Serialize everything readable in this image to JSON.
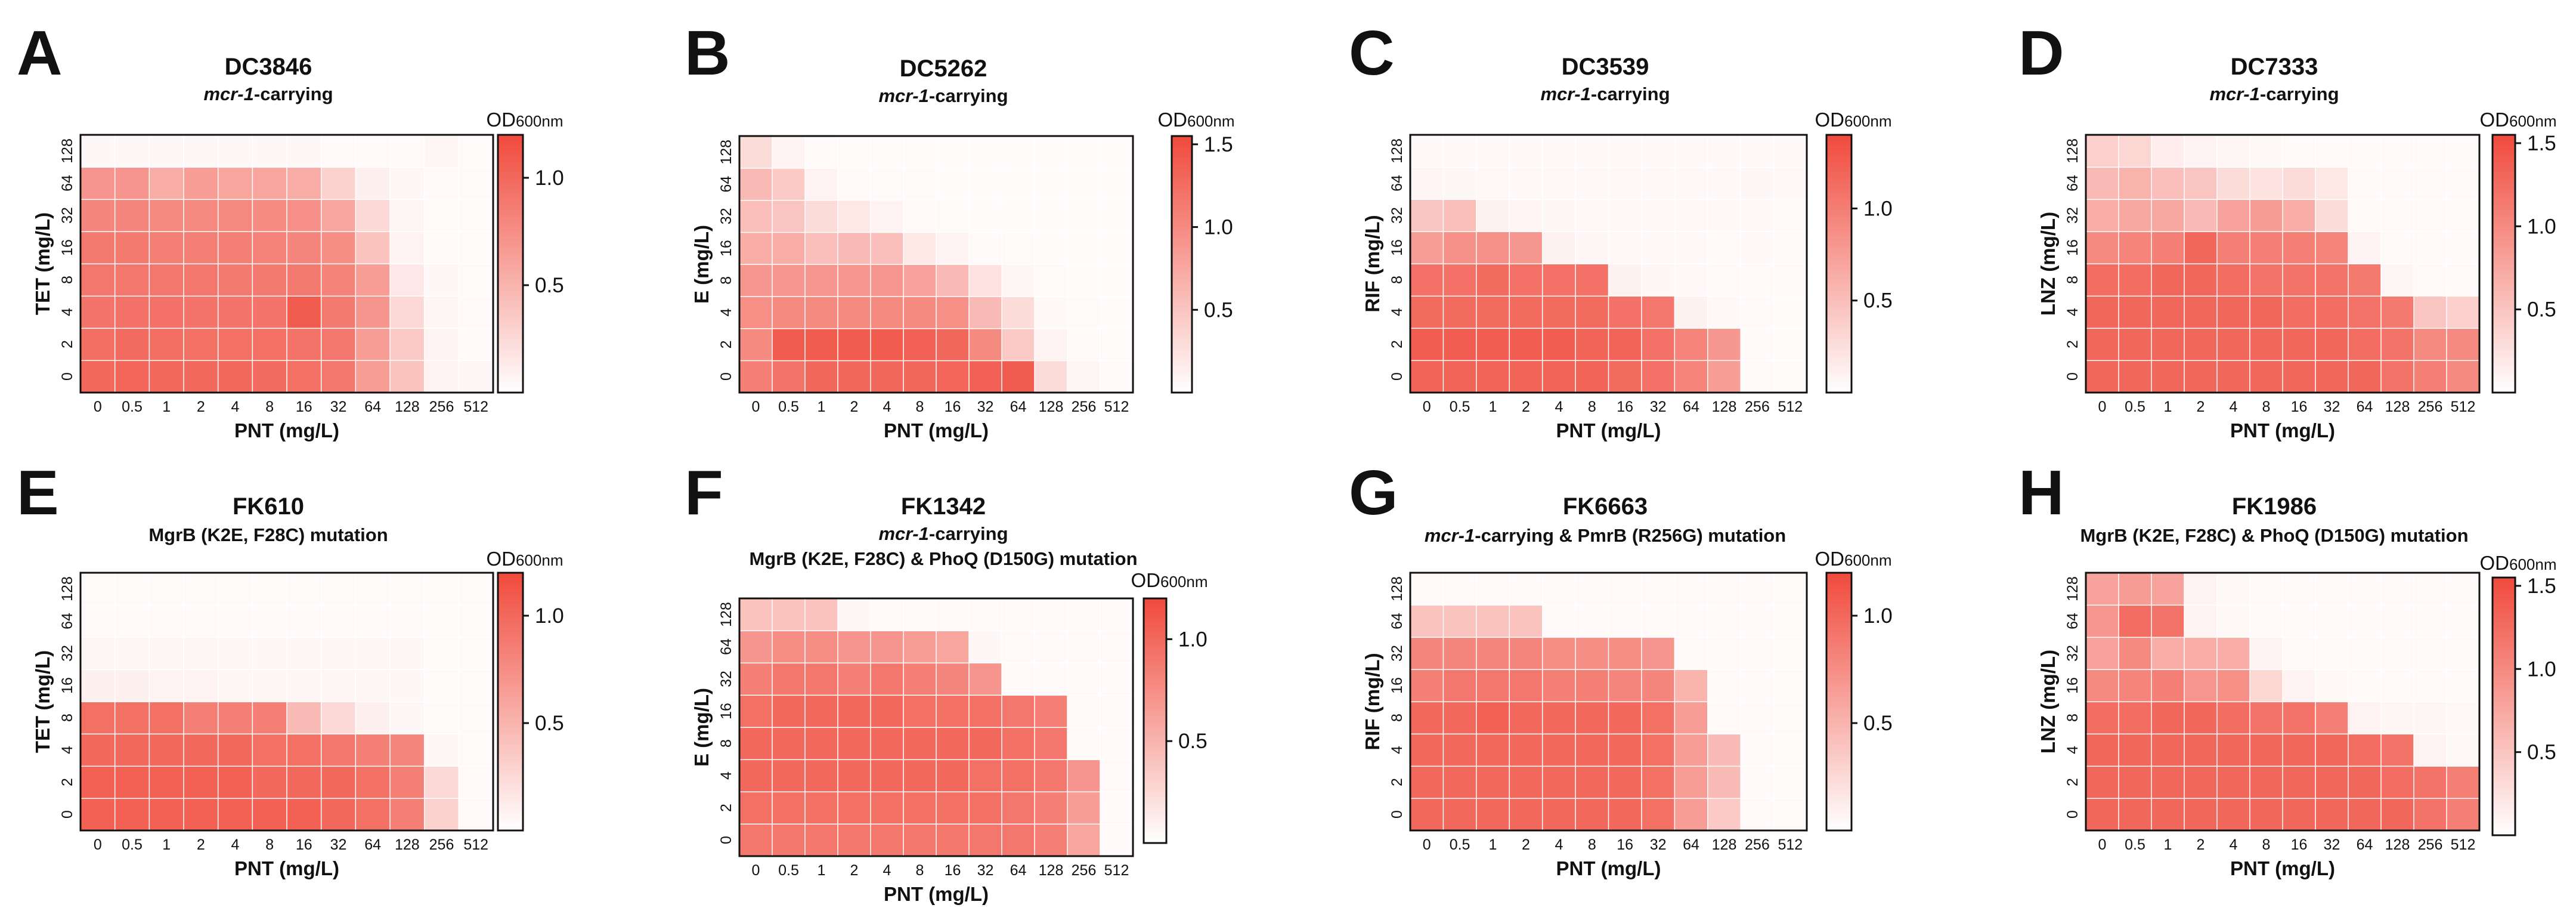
{
  "colormap": {
    "low": "#ffffff",
    "high": "#f04a3c"
  },
  "chart_data": [
    {
      "type": "heatmap",
      "letter": "A",
      "title": "DC3846",
      "subtitle_em": "mcr-1",
      "subtitle_rest": "-carrying",
      "subtitle2": "",
      "xlabel": "PNT (mg/L)",
      "ylabel": "TET (mg/L)",
      "x": [
        "0",
        "0.5",
        "1",
        "2",
        "4",
        "8",
        "16",
        "32",
        "64",
        "128",
        "256",
        "512"
      ],
      "y": [
        "0",
        "2",
        "4",
        "8",
        "16",
        "32",
        "64",
        "128"
      ],
      "colorbar_label": "OD",
      "colorbar_sub": "600nm",
      "colorbar_ticks": [
        "0.5",
        "1.0"
      ],
      "vmax": 1.2,
      "values": [
        [
          1.0,
          1.02,
          1.0,
          1.0,
          1.0,
          0.98,
          0.95,
          0.9,
          0.65,
          0.4,
          0.08,
          0.05
        ],
        [
          0.96,
          0.98,
          0.96,
          0.95,
          0.95,
          0.95,
          0.92,
          0.9,
          0.65,
          0.35,
          0.07,
          0.04
        ],
        [
          0.92,
          0.94,
          0.94,
          0.92,
          0.92,
          0.92,
          1.08,
          0.88,
          0.7,
          0.25,
          0.06,
          0.04
        ],
        [
          0.9,
          0.9,
          0.9,
          0.9,
          0.88,
          0.88,
          0.88,
          0.82,
          0.65,
          0.15,
          0.05,
          0.03
        ],
        [
          0.88,
          0.88,
          0.85,
          0.85,
          0.85,
          0.83,
          0.8,
          0.75,
          0.4,
          0.08,
          0.04,
          0.03
        ],
        [
          0.8,
          0.8,
          0.78,
          0.78,
          0.78,
          0.76,
          0.74,
          0.6,
          0.25,
          0.06,
          0.03,
          0.03
        ],
        [
          0.7,
          0.7,
          0.55,
          0.65,
          0.6,
          0.6,
          0.55,
          0.3,
          0.1,
          0.05,
          0.04,
          0.03
        ],
        [
          0.05,
          0.05,
          0.05,
          0.05,
          0.05,
          0.05,
          0.05,
          0.04,
          0.04,
          0.04,
          0.06,
          0.03
        ]
      ]
    },
    {
      "type": "heatmap",
      "letter": "B",
      "title": "DC5262",
      "subtitle_em": "mcr-1",
      "subtitle_rest": "-carrying",
      "subtitle2": "",
      "xlabel": "PNT (mg/L)",
      "ylabel": "E (mg/L)",
      "x": [
        "0",
        "0.5",
        "1",
        "2",
        "4",
        "8",
        "16",
        "32",
        "64",
        "128",
        "256",
        "512"
      ],
      "y": [
        "0",
        "2",
        "4",
        "8",
        "16",
        "32",
        "64",
        "128"
      ],
      "colorbar_label": "OD",
      "colorbar_sub": "600nm",
      "colorbar_ticks": [
        "0.5",
        "1.0",
        "1.5"
      ],
      "vmax": 1.55,
      "values": [
        [
          1.1,
          1.2,
          1.3,
          1.3,
          1.3,
          1.3,
          1.32,
          1.35,
          1.4,
          0.3,
          0.08,
          0.05
        ],
        [
          1.0,
          1.4,
          1.4,
          1.4,
          1.4,
          1.35,
          1.3,
          1.0,
          0.45,
          0.1,
          0.05,
          0.04
        ],
        [
          0.95,
          1.0,
          1.0,
          1.0,
          1.0,
          1.0,
          0.95,
          0.6,
          0.3,
          0.06,
          0.04,
          0.03
        ],
        [
          0.9,
          0.9,
          0.9,
          0.9,
          0.9,
          0.8,
          0.6,
          0.25,
          0.08,
          0.04,
          0.03,
          0.03
        ],
        [
          0.7,
          0.7,
          0.55,
          0.6,
          0.55,
          0.2,
          0.1,
          0.05,
          0.04,
          0.03,
          0.03,
          0.03
        ],
        [
          0.55,
          0.5,
          0.3,
          0.2,
          0.1,
          0.05,
          0.04,
          0.03,
          0.03,
          0.03,
          0.03,
          0.03
        ],
        [
          0.6,
          0.45,
          0.1,
          0.05,
          0.04,
          0.04,
          0.03,
          0.03,
          0.03,
          0.03,
          0.03,
          0.03
        ],
        [
          0.3,
          0.1,
          0.05,
          0.04,
          0.04,
          0.03,
          0.03,
          0.03,
          0.03,
          0.03,
          0.03,
          0.03
        ]
      ]
    },
    {
      "type": "heatmap",
      "letter": "C",
      "title": "DC3539",
      "subtitle_em": "mcr-1",
      "subtitle_rest": "-carrying",
      "subtitle2": "",
      "xlabel": "PNT (mg/L)",
      "ylabel": "RIF (mg/L)",
      "x": [
        "0",
        "0.5",
        "1",
        "2",
        "4",
        "8",
        "16",
        "32",
        "64",
        "128",
        "256",
        "512"
      ],
      "y": [
        "0",
        "2",
        "4",
        "8",
        "16",
        "32",
        "64",
        "128"
      ],
      "colorbar_label": "OD",
      "colorbar_sub": "600nm",
      "colorbar_ticks": [
        "0.5",
        "1.0"
      ],
      "vmax": 1.4,
      "values": [
        [
          1.2,
          1.2,
          1.2,
          1.2,
          1.2,
          1.2,
          1.15,
          1.1,
          0.95,
          0.75,
          0.04,
          0.03
        ],
        [
          1.25,
          1.25,
          1.25,
          1.25,
          1.25,
          1.2,
          1.2,
          1.1,
          0.95,
          0.8,
          0.04,
          0.03
        ],
        [
          1.15,
          1.15,
          1.15,
          1.15,
          1.15,
          1.15,
          1.1,
          1.05,
          0.1,
          0.05,
          0.04,
          0.03
        ],
        [
          1.1,
          1.1,
          1.15,
          1.1,
          1.1,
          1.1,
          0.1,
          0.06,
          0.05,
          0.04,
          0.04,
          0.04
        ],
        [
          0.75,
          0.85,
          0.85,
          0.8,
          0.1,
          0.06,
          0.05,
          0.05,
          0.05,
          0.04,
          0.05,
          0.04
        ],
        [
          0.45,
          0.5,
          0.1,
          0.08,
          0.06,
          0.05,
          0.05,
          0.05,
          0.05,
          0.05,
          0.05,
          0.04
        ],
        [
          0.08,
          0.06,
          0.05,
          0.05,
          0.05,
          0.05,
          0.05,
          0.05,
          0.05,
          0.05,
          0.06,
          0.05
        ],
        [
          0.05,
          0.05,
          0.05,
          0.05,
          0.05,
          0.05,
          0.05,
          0.05,
          0.05,
          0.05,
          0.05,
          0.05
        ]
      ]
    },
    {
      "type": "heatmap",
      "letter": "D",
      "title": "DC7333",
      "subtitle_em": "mcr-1",
      "subtitle_rest": "-carrying",
      "subtitle2": "",
      "xlabel": "PNT (mg/L)",
      "ylabel": "LNZ (mg/L)",
      "x": [
        "0",
        "0.5",
        "1",
        "2",
        "4",
        "8",
        "16",
        "32",
        "64",
        "128",
        "256",
        "512"
      ],
      "y": [
        "0",
        "2",
        "4",
        "8",
        "16",
        "32",
        "64",
        "128"
      ],
      "colorbar_label": "OD",
      "colorbar_sub": "600nm",
      "colorbar_ticks": [
        "0.5",
        "1.0",
        "1.5"
      ],
      "vmax": 1.55,
      "values": [
        [
          1.3,
          1.3,
          1.3,
          1.3,
          1.3,
          1.3,
          1.3,
          1.3,
          1.3,
          1.2,
          1.1,
          1.0
        ],
        [
          1.3,
          1.3,
          1.3,
          1.3,
          1.3,
          1.3,
          1.3,
          1.3,
          1.25,
          1.2,
          1.0,
          1.0
        ],
        [
          1.3,
          1.3,
          1.3,
          1.3,
          1.3,
          1.3,
          1.25,
          1.25,
          1.2,
          1.15,
          0.5,
          0.4
        ],
        [
          1.25,
          1.25,
          1.3,
          1.3,
          1.25,
          1.2,
          1.2,
          1.2,
          1.15,
          0.08,
          0.05,
          0.05
        ],
        [
          1.0,
          1.05,
          1.1,
          1.3,
          1.1,
          1.1,
          1.1,
          1.05,
          0.1,
          0.05,
          0.05,
          0.05
        ],
        [
          0.7,
          0.75,
          0.75,
          0.6,
          0.8,
          0.85,
          0.7,
          0.3,
          0.05,
          0.05,
          0.05,
          0.05
        ],
        [
          0.6,
          0.65,
          0.55,
          0.5,
          0.3,
          0.25,
          0.3,
          0.2,
          0.05,
          0.05,
          0.05,
          0.05
        ],
        [
          0.4,
          0.35,
          0.15,
          0.1,
          0.08,
          0.06,
          0.05,
          0.05,
          0.05,
          0.05,
          0.05,
          0.05
        ]
      ]
    },
    {
      "type": "heatmap",
      "letter": "E",
      "title": "FK610",
      "subtitle_em": "",
      "subtitle_rest": "",
      "subtitle2": "MgrB (K2E, F28C) mutation",
      "xlabel": "PNT (mg/L)",
      "ylabel": "TET (mg/L)",
      "x": [
        "0",
        "0.5",
        "1",
        "2",
        "4",
        "8",
        "16",
        "32",
        "64",
        "128",
        "256",
        "512"
      ],
      "y": [
        "0",
        "2",
        "4",
        "8",
        "16",
        "32",
        "64",
        "128"
      ],
      "colorbar_label": "OD",
      "colorbar_sub": "600nm",
      "colorbar_ticks": [
        "0.5",
        "1.0"
      ],
      "vmax": 1.2,
      "values": [
        [
          1.05,
          1.05,
          1.05,
          1.05,
          1.05,
          1.05,
          1.05,
          1.0,
          0.95,
          0.85,
          0.3,
          0.04
        ],
        [
          1.05,
          1.05,
          1.05,
          1.05,
          1.05,
          1.0,
          1.0,
          1.0,
          0.95,
          0.85,
          0.25,
          0.04
        ],
        [
          1.0,
          1.0,
          1.0,
          1.0,
          1.0,
          0.95,
          0.95,
          0.9,
          0.85,
          0.8,
          0.05,
          0.03
        ],
        [
          0.95,
          0.95,
          0.95,
          0.85,
          0.85,
          0.85,
          0.45,
          0.25,
          0.1,
          0.05,
          0.03,
          0.03
        ],
        [
          0.1,
          0.1,
          0.08,
          0.08,
          0.06,
          0.06,
          0.06,
          0.06,
          0.06,
          0.05,
          0.03,
          0.03
        ],
        [
          0.06,
          0.06,
          0.06,
          0.06,
          0.05,
          0.05,
          0.05,
          0.05,
          0.05,
          0.05,
          0.03,
          0.03
        ],
        [
          0.04,
          0.04,
          0.04,
          0.04,
          0.04,
          0.04,
          0.04,
          0.04,
          0.04,
          0.04,
          0.03,
          0.03
        ],
        [
          0.03,
          0.03,
          0.03,
          0.03,
          0.03,
          0.03,
          0.03,
          0.03,
          0.03,
          0.03,
          0.03,
          0.03
        ]
      ]
    },
    {
      "type": "heatmap",
      "letter": "F",
      "title": "FK1342",
      "subtitle_em": "mcr-1",
      "subtitle_rest": "-carrying",
      "subtitle2": "MgrB (K2E, F28C) & PhoQ (D150G) mutation",
      "xlabel": "PNT (mg/L)",
      "ylabel": "E (mg/L)",
      "x": [
        "0",
        "0.5",
        "1",
        "2",
        "4",
        "8",
        "16",
        "32",
        "64",
        "128",
        "256",
        "512"
      ],
      "y": [
        "0",
        "2",
        "4",
        "8",
        "16",
        "32",
        "64",
        "128"
      ],
      "colorbar_label": "OD",
      "colorbar_sub": "600nm",
      "colorbar_ticks": [
        "0.5",
        "1.0"
      ],
      "vmax": 1.2,
      "values": [
        [
          0.9,
          0.9,
          0.9,
          0.9,
          0.9,
          0.9,
          0.9,
          0.9,
          0.9,
          0.85,
          0.6,
          0.04
        ],
        [
          0.95,
          0.95,
          0.95,
          0.95,
          0.95,
          0.95,
          0.95,
          0.95,
          0.9,
          0.85,
          0.65,
          0.04
        ],
        [
          1.0,
          1.0,
          1.0,
          1.0,
          1.0,
          1.0,
          1.0,
          0.95,
          0.95,
          0.9,
          0.7,
          0.04
        ],
        [
          1.0,
          1.0,
          1.0,
          1.0,
          1.0,
          1.0,
          1.0,
          1.0,
          0.95,
          0.9,
          0.04,
          0.04
        ],
        [
          0.95,
          1.0,
          1.0,
          1.0,
          1.0,
          0.95,
          0.95,
          0.95,
          0.9,
          0.85,
          0.04,
          0.04
        ],
        [
          0.85,
          0.9,
          0.9,
          0.85,
          0.9,
          0.85,
          0.8,
          0.7,
          0.04,
          0.04,
          0.04,
          0.04
        ],
        [
          0.7,
          0.75,
          0.75,
          0.7,
          0.7,
          0.65,
          0.6,
          0.05,
          0.04,
          0.04,
          0.04,
          0.04
        ],
        [
          0.4,
          0.4,
          0.4,
          0.05,
          0.04,
          0.04,
          0.04,
          0.04,
          0.04,
          0.04,
          0.04,
          0.04
        ]
      ]
    },
    {
      "type": "heatmap",
      "letter": "G",
      "title": "FK6663",
      "subtitle_em": "mcr-1",
      "subtitle_rest": "-carrying & PmrB (R256G) mutation",
      "subtitle2": "",
      "xlabel": "PNT (mg/L)",
      "ylabel": "RIF (mg/L)",
      "x": [
        "0",
        "0.5",
        "1",
        "2",
        "4",
        "8",
        "16",
        "32",
        "64",
        "128",
        "256",
        "512"
      ],
      "y": [
        "0",
        "2",
        "4",
        "8",
        "16",
        "32",
        "64",
        "128"
      ],
      "colorbar_label": "OD",
      "colorbar_sub": "600nm",
      "colorbar_ticks": [
        "0.5",
        "1.0"
      ],
      "vmax": 1.2,
      "values": [
        [
          1.0,
          1.0,
          1.0,
          1.0,
          1.0,
          1.0,
          1.0,
          0.95,
          0.65,
          0.35,
          0.04,
          0.03
        ],
        [
          1.0,
          1.0,
          1.0,
          1.0,
          1.0,
          1.0,
          1.0,
          0.95,
          0.65,
          0.45,
          0.04,
          0.03
        ],
        [
          1.0,
          1.0,
          1.0,
          1.0,
          1.0,
          1.0,
          1.0,
          0.95,
          0.65,
          0.45,
          0.04,
          0.03
        ],
        [
          1.0,
          1.0,
          1.05,
          1.0,
          1.0,
          1.0,
          1.0,
          0.95,
          0.65,
          0.04,
          0.04,
          0.03
        ],
        [
          0.85,
          0.9,
          0.9,
          0.9,
          0.85,
          0.85,
          0.8,
          0.8,
          0.5,
          0.04,
          0.04,
          0.03
        ],
        [
          0.8,
          0.8,
          0.8,
          0.8,
          0.75,
          0.75,
          0.75,
          0.7,
          0.04,
          0.04,
          0.04,
          0.03
        ],
        [
          0.4,
          0.4,
          0.4,
          0.4,
          0.04,
          0.04,
          0.04,
          0.04,
          0.04,
          0.04,
          0.04,
          0.03
        ],
        [
          0.04,
          0.04,
          0.04,
          0.04,
          0.04,
          0.04,
          0.04,
          0.04,
          0.04,
          0.04,
          0.04,
          0.03
        ]
      ]
    },
    {
      "type": "heatmap",
      "letter": "H",
      "title": "FK1986",
      "subtitle_em": "",
      "subtitle_rest": "",
      "subtitle2": "MgrB (K2E, F28C) & PhoQ (D150G) mutation",
      "xlabel": "PNT (mg/L)",
      "ylabel": "LNZ (mg/L)",
      "x": [
        "0",
        "0.5",
        "1",
        "2",
        "4",
        "8",
        "16",
        "32",
        "64",
        "128",
        "256",
        "512"
      ],
      "y": [
        "0",
        "2",
        "4",
        "8",
        "16",
        "32",
        "64",
        "128"
      ],
      "colorbar_label": "OD",
      "colorbar_sub": "600nm",
      "colorbar_ticks": [
        "0.5",
        "1.0",
        "1.5"
      ],
      "vmax": 1.55,
      "values": [
        [
          1.3,
          1.3,
          1.3,
          1.3,
          1.3,
          1.3,
          1.3,
          1.3,
          1.3,
          1.3,
          1.2,
          1.1
        ],
        [
          1.3,
          1.3,
          1.3,
          1.3,
          1.3,
          1.3,
          1.3,
          1.3,
          1.3,
          1.25,
          1.2,
          1.1
        ],
        [
          1.3,
          1.3,
          1.3,
          1.3,
          1.3,
          1.3,
          1.3,
          1.3,
          1.25,
          1.2,
          0.1,
          0.06
        ],
        [
          1.25,
          1.25,
          1.3,
          1.3,
          1.25,
          1.2,
          1.2,
          1.1,
          0.1,
          0.08,
          0.08,
          0.06
        ],
        [
          1.0,
          1.05,
          1.1,
          0.9,
          0.95,
          0.35,
          0.1,
          0.06,
          0.05,
          0.05,
          0.05,
          0.05
        ],
        [
          0.8,
          1.0,
          0.7,
          0.7,
          0.7,
          0.1,
          0.05,
          0.05,
          0.05,
          0.05,
          0.05,
          0.05
        ],
        [
          0.9,
          1.25,
          1.2,
          0.1,
          0.06,
          0.05,
          0.05,
          0.05,
          0.05,
          0.05,
          0.05,
          0.05
        ],
        [
          0.8,
          0.85,
          0.8,
          0.1,
          0.06,
          0.05,
          0.05,
          0.05,
          0.05,
          0.05,
          0.05,
          0.05
        ]
      ]
    }
  ]
}
